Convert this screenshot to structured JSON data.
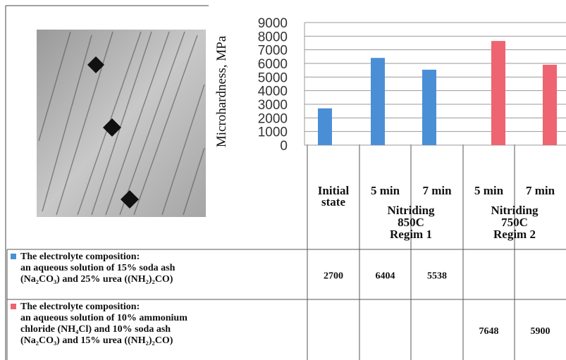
{
  "chart_data": {
    "type": "bar",
    "y_label": "Microhardness, MPa",
    "categories": [
      [
        "Initial",
        "state"
      ],
      "5 min",
      "7 min",
      "5 min",
      "7 min"
    ],
    "groups": [
      [
        "Nitriding",
        "850C",
        "Regim 1"
      ],
      [
        "Nitriding",
        "750C",
        "Regim 2"
      ]
    ],
    "series": [
      {
        "name": [
          "The electrolyte composition:",
          "an aqueous solution of 15% soda ash",
          "(Na₂CO₃) and 25% urea ((NH₂)₂CO)"
        ],
        "color": "#4a8fd6",
        "values": [
          2700,
          6404,
          5538,
          null,
          null
        ]
      },
      {
        "name": [
          "The electrolyte composition:",
          "an aqueous solution of 10% ammonium",
          "chloride (NH₄Cl) and 10% soda ash",
          "(Na₂CO₃) and 15% urea ((NH₂)₂CO)"
        ],
        "color": "#ee6470",
        "values": [
          null,
          null,
          null,
          7648,
          5900
        ]
      }
    ],
    "ylim": [
      0,
      9000
    ],
    "yticks": [
      0,
      1000,
      2000,
      3000,
      4000,
      5000,
      6000,
      7000,
      8000,
      9000
    ],
    "grid": true
  }
}
